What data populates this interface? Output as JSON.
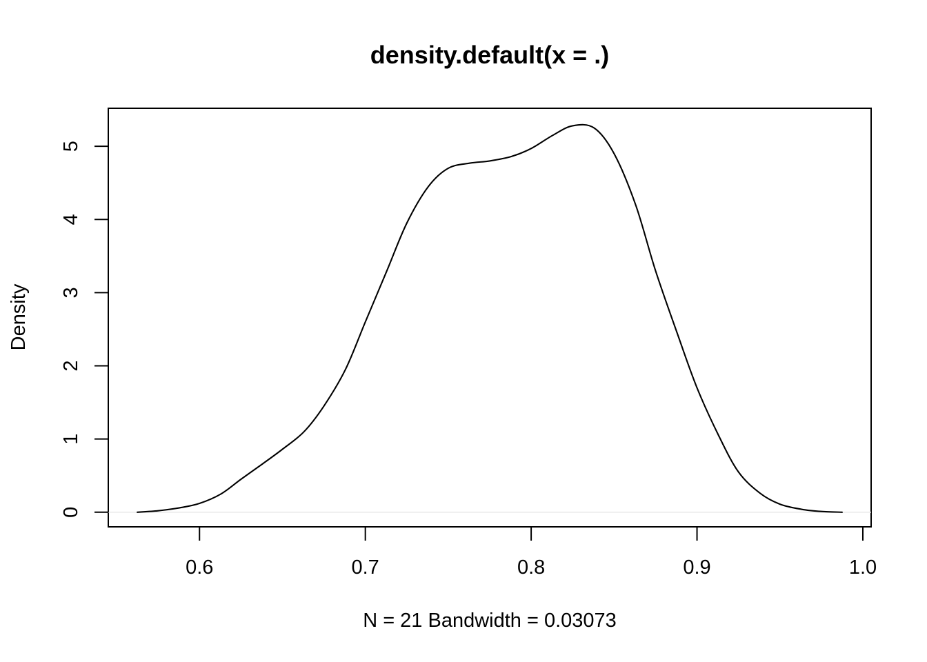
{
  "chart_data": {
    "type": "line",
    "title": "density.default(x = .)",
    "xlabel": "N = 21   Bandwidth = 0.03073",
    "ylabel": "Density",
    "xlim": [
      0.545,
      1.005
    ],
    "ylim": [
      -0.2,
      5.52
    ],
    "grid": false,
    "x_ticks": [
      0.6,
      0.7,
      0.8,
      0.9,
      1.0
    ],
    "x_tick_labels": [
      "0.6",
      "0.7",
      "0.8",
      "0.9",
      "1.0"
    ],
    "y_ticks": [
      0,
      1,
      2,
      3,
      4,
      5
    ],
    "y_tick_labels": [
      "0",
      "1",
      "2",
      "3",
      "4",
      "5"
    ],
    "series": [
      {
        "x": [
          0.5625,
          0.575,
          0.588,
          0.6,
          0.613,
          0.625,
          0.638,
          0.65,
          0.663,
          0.675,
          0.688,
          0.7,
          0.713,
          0.725,
          0.738,
          0.75,
          0.763,
          0.775,
          0.788,
          0.8,
          0.813,
          0.825,
          0.838,
          0.85,
          0.863,
          0.875,
          0.888,
          0.9,
          0.913,
          0.925,
          0.938,
          0.95,
          0.963,
          0.975,
          0.9875
        ],
        "y": [
          0.0,
          0.02,
          0.06,
          0.12,
          0.25,
          0.45,
          0.66,
          0.86,
          1.1,
          1.45,
          1.95,
          2.6,
          3.3,
          3.95,
          4.45,
          4.7,
          4.77,
          4.8,
          4.86,
          4.97,
          5.15,
          5.28,
          5.25,
          4.9,
          4.2,
          3.3,
          2.45,
          1.7,
          1.05,
          0.55,
          0.26,
          0.11,
          0.04,
          0.01,
          0.0
        ]
      }
    ]
  }
}
